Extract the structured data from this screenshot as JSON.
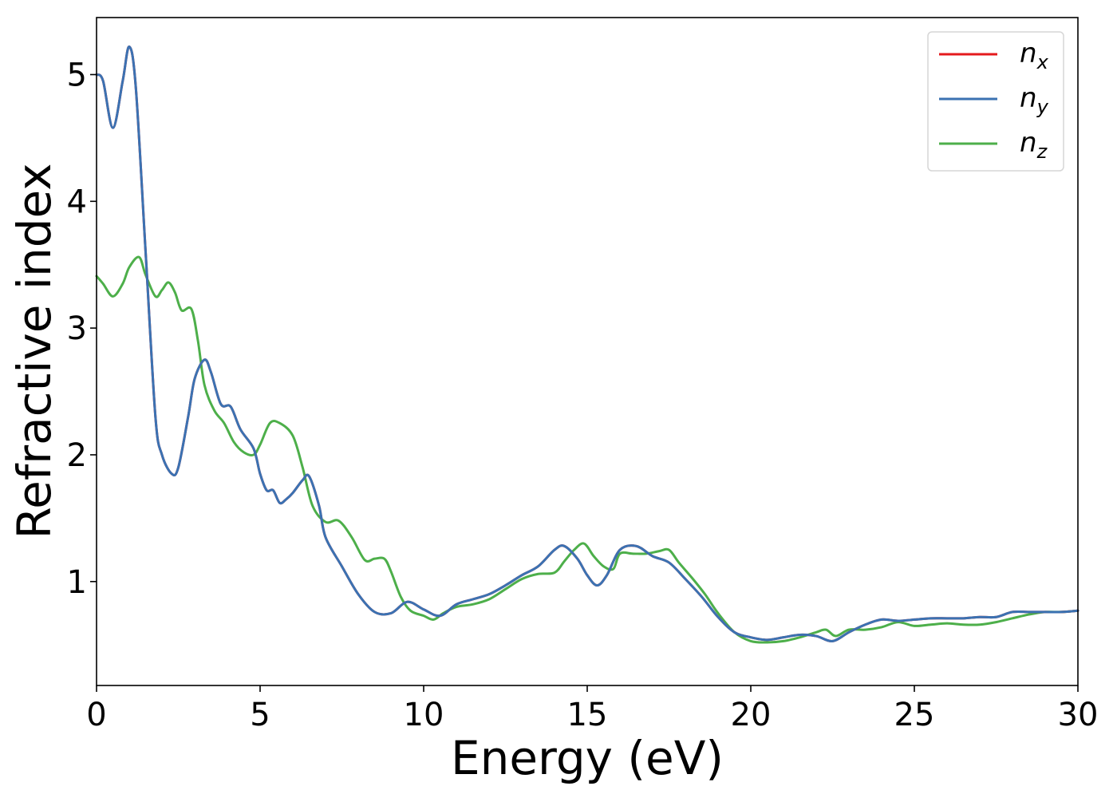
{
  "chart_data": {
    "type": "line",
    "xlabel": "Energy (eV)",
    "ylabel": "Refractive index",
    "xlim": [
      0,
      30
    ],
    "ylim": [
      0.18,
      5.45
    ],
    "xticks": [
      0,
      5,
      10,
      15,
      20,
      25,
      30
    ],
    "yticks": [
      1,
      2,
      3,
      4,
      5
    ],
    "grid": false,
    "legend_position": "top-right",
    "series": [
      {
        "name": "n_x",
        "label_base": "n",
        "label_sub": "x",
        "color": "#e41a1c",
        "x": [
          0,
          0.2,
          0.5,
          0.8,
          1.0,
          1.2,
          1.5,
          1.8,
          2.0,
          2.3,
          2.5,
          2.8,
          3.0,
          3.3,
          3.5,
          3.8,
          4.1,
          4.4,
          4.8,
          5.0,
          5.2,
          5.4,
          5.6,
          5.8,
          6.0,
          6.3,
          6.5,
          6.8,
          7.0,
          7.5,
          8.0,
          8.5,
          9.0,
          9.5,
          10.0,
          10.5,
          11.0,
          11.5,
          12.0,
          12.5,
          13.0,
          13.5,
          14.0,
          14.3,
          14.7,
          15.0,
          15.3,
          15.6,
          16.0,
          16.5,
          17.0,
          17.5,
          18.0,
          18.5,
          19.0,
          19.5,
          20.0,
          20.5,
          21.0,
          21.5,
          22.0,
          22.5,
          23.0,
          23.5,
          24.0,
          24.5,
          25.0,
          25.5,
          26.0,
          26.5,
          27.0,
          27.5,
          28.0,
          28.5,
          29.0,
          29.5,
          30.0
        ],
        "values": [
          5.0,
          4.95,
          4.58,
          4.95,
          5.22,
          4.9,
          3.6,
          2.3,
          2.0,
          1.85,
          1.9,
          2.3,
          2.6,
          2.75,
          2.65,
          2.4,
          2.38,
          2.2,
          2.05,
          1.85,
          1.72,
          1.72,
          1.62,
          1.65,
          1.7,
          1.8,
          1.83,
          1.6,
          1.35,
          1.12,
          0.9,
          0.76,
          0.75,
          0.84,
          0.78,
          0.73,
          0.82,
          0.86,
          0.9,
          0.97,
          1.05,
          1.12,
          1.25,
          1.28,
          1.18,
          1.05,
          0.97,
          1.05,
          1.25,
          1.28,
          1.2,
          1.15,
          1.02,
          0.88,
          0.72,
          0.6,
          0.56,
          0.54,
          0.56,
          0.58,
          0.57,
          0.53,
          0.6,
          0.66,
          0.7,
          0.69,
          0.7,
          0.71,
          0.71,
          0.71,
          0.72,
          0.72,
          0.76,
          0.76,
          0.76,
          0.76,
          0.77
        ]
      },
      {
        "name": "n_y",
        "label_base": "n",
        "label_sub": "y",
        "color": "#3b72b2",
        "x": [
          0,
          0.2,
          0.5,
          0.8,
          1.0,
          1.2,
          1.5,
          1.8,
          2.0,
          2.3,
          2.5,
          2.8,
          3.0,
          3.3,
          3.5,
          3.8,
          4.1,
          4.4,
          4.8,
          5.0,
          5.2,
          5.4,
          5.6,
          5.8,
          6.0,
          6.3,
          6.5,
          6.8,
          7.0,
          7.5,
          8.0,
          8.5,
          9.0,
          9.5,
          10.0,
          10.5,
          11.0,
          11.5,
          12.0,
          12.5,
          13.0,
          13.5,
          14.0,
          14.3,
          14.7,
          15.0,
          15.3,
          15.6,
          16.0,
          16.5,
          17.0,
          17.5,
          18.0,
          18.5,
          19.0,
          19.5,
          20.0,
          20.5,
          21.0,
          21.5,
          22.0,
          22.5,
          23.0,
          23.5,
          24.0,
          24.5,
          25.0,
          25.5,
          26.0,
          26.5,
          27.0,
          27.5,
          28.0,
          28.5,
          29.0,
          29.5,
          30.0
        ],
        "values": [
          5.0,
          4.95,
          4.58,
          4.95,
          5.22,
          4.9,
          3.6,
          2.3,
          2.0,
          1.85,
          1.9,
          2.3,
          2.6,
          2.75,
          2.65,
          2.4,
          2.38,
          2.2,
          2.05,
          1.85,
          1.72,
          1.72,
          1.62,
          1.65,
          1.7,
          1.8,
          1.83,
          1.6,
          1.35,
          1.12,
          0.9,
          0.76,
          0.75,
          0.84,
          0.78,
          0.73,
          0.82,
          0.86,
          0.9,
          0.97,
          1.05,
          1.12,
          1.25,
          1.28,
          1.18,
          1.05,
          0.97,
          1.05,
          1.25,
          1.28,
          1.2,
          1.15,
          1.02,
          0.88,
          0.72,
          0.6,
          0.56,
          0.54,
          0.56,
          0.58,
          0.57,
          0.53,
          0.6,
          0.66,
          0.7,
          0.69,
          0.7,
          0.71,
          0.71,
          0.71,
          0.72,
          0.72,
          0.76,
          0.76,
          0.76,
          0.76,
          0.77
        ]
      },
      {
        "name": "n_z",
        "label_base": "n",
        "label_sub": "z",
        "color": "#4daf4a",
        "x": [
          0,
          0.2,
          0.5,
          0.8,
          1.0,
          1.3,
          1.5,
          1.8,
          2.0,
          2.2,
          2.4,
          2.6,
          2.9,
          3.1,
          3.3,
          3.6,
          3.9,
          4.2,
          4.5,
          4.8,
          5.0,
          5.3,
          5.6,
          6.0,
          6.3,
          6.6,
          7.0,
          7.4,
          7.8,
          8.2,
          8.5,
          8.8,
          9.0,
          9.3,
          9.6,
          10.0,
          10.3,
          10.6,
          11.0,
          11.5,
          12.0,
          12.5,
          13.0,
          13.5,
          14.0,
          14.3,
          14.6,
          14.9,
          15.2,
          15.5,
          15.8,
          16.0,
          16.4,
          16.8,
          17.2,
          17.5,
          17.8,
          18.2,
          18.6,
          19.0,
          19.5,
          20.0,
          20.5,
          21.0,
          21.5,
          22.0,
          22.3,
          22.6,
          23.0,
          23.5,
          24.0,
          24.5,
          25.0,
          25.5,
          26.0,
          26.5,
          27.0,
          27.5,
          28.0,
          28.5,
          29.0,
          29.5,
          30.0
        ],
        "values": [
          3.41,
          3.35,
          3.25,
          3.35,
          3.48,
          3.56,
          3.42,
          3.25,
          3.3,
          3.36,
          3.28,
          3.14,
          3.15,
          2.9,
          2.55,
          2.35,
          2.25,
          2.1,
          2.02,
          2.0,
          2.08,
          2.25,
          2.25,
          2.15,
          1.9,
          1.6,
          1.47,
          1.48,
          1.35,
          1.17,
          1.18,
          1.18,
          1.08,
          0.88,
          0.77,
          0.73,
          0.7,
          0.75,
          0.8,
          0.82,
          0.86,
          0.94,
          1.02,
          1.06,
          1.07,
          1.16,
          1.25,
          1.3,
          1.2,
          1.12,
          1.1,
          1.22,
          1.22,
          1.22,
          1.24,
          1.25,
          1.15,
          1.03,
          0.9,
          0.75,
          0.6,
          0.53,
          0.52,
          0.53,
          0.56,
          0.6,
          0.62,
          0.57,
          0.62,
          0.62,
          0.64,
          0.68,
          0.65,
          0.66,
          0.67,
          0.66,
          0.66,
          0.68,
          0.71,
          0.74,
          0.76,
          0.76,
          0.77
        ]
      }
    ]
  }
}
